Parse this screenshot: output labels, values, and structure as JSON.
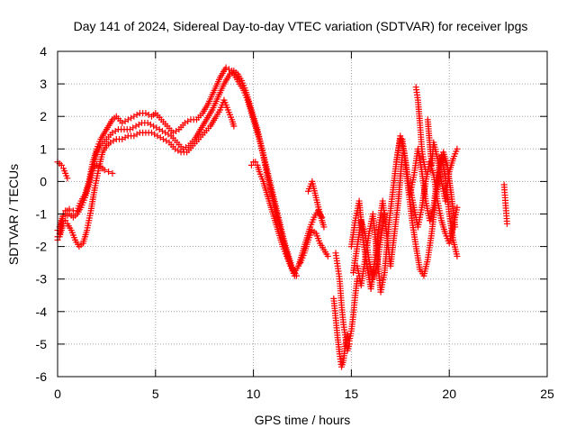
{
  "chart_data": {
    "type": "scatter",
    "title": "Day 141 of 2024, Sidereal Day-to-day VTEC variation (SDTVAR) for receiver lpgs",
    "xlabel": "GPS time / hours",
    "ylabel": "SDTVAR / TECUs",
    "xlim": [
      0,
      25
    ],
    "ylim": [
      -6,
      4
    ],
    "xticks": [
      0,
      5,
      10,
      15,
      20,
      25
    ],
    "yticks": [
      -6,
      -5,
      -4,
      -3,
      -2,
      -1,
      0,
      1,
      2,
      3,
      4
    ],
    "grid": true,
    "marker": "plus",
    "color": "#ff0000",
    "series": [
      {
        "x": [
          0.0,
          0.1,
          0.2,
          0.3,
          0.4,
          0.5,
          0.6,
          0.8,
          1.0,
          1.2,
          1.4,
          1.6,
          1.8,
          2.0,
          2.2,
          2.5,
          2.8,
          3.0,
          3.3,
          3.6,
          3.9,
          4.2,
          4.5,
          4.8,
          5.0,
          5.3,
          5.6,
          5.9,
          6.2,
          6.5,
          6.8,
          7.1,
          7.4,
          7.7,
          8.0,
          8.3,
          8.6,
          8.9,
          9.1,
          9.3,
          9.5,
          9.7,
          9.9,
          10.1,
          10.3,
          10.5,
          10.7,
          10.9,
          11.1,
          11.3,
          11.5,
          11.7,
          11.9,
          12.1
        ],
        "y": [
          -1.7,
          -1.6,
          -1.3,
          -1.0,
          -0.9,
          -0.9,
          -0.85,
          -0.9,
          -0.9,
          -0.6,
          -0.4,
          0.0,
          0.6,
          1.0,
          1.3,
          1.6,
          1.9,
          2.0,
          1.8,
          1.9,
          2.0,
          2.1,
          2.1,
          2.0,
          2.1,
          1.9,
          1.7,
          1.5,
          1.6,
          1.8,
          1.9,
          1.9,
          2.1,
          2.4,
          2.8,
          3.2,
          3.5,
          3.4,
          3.2,
          3.0,
          2.8,
          2.5,
          2.1,
          1.7,
          1.3,
          0.8,
          0.2,
          -0.3,
          -0.8,
          -1.3,
          -1.8,
          -2.2,
          -2.6,
          -2.9
        ]
      },
      {
        "x": [
          0.0,
          0.1,
          0.2,
          0.3,
          0.4,
          0.5,
          0.6,
          0.8,
          1.0,
          1.2,
          1.4,
          1.6,
          1.8,
          2.0,
          2.2,
          2.5,
          2.8,
          3.1,
          3.4,
          3.7,
          4.0,
          4.3,
          4.6,
          4.9,
          5.2,
          5.5,
          5.8,
          6.1,
          6.4,
          6.7,
          7.0,
          7.3,
          7.6,
          7.9,
          8.2,
          8.5,
          8.8,
          9.0,
          9.2,
          9.4,
          9.6,
          9.8,
          10.0,
          10.2,
          10.4,
          10.6,
          10.8,
          11.0,
          11.2,
          11.4,
          11.6,
          11.8,
          12.0,
          12.2
        ],
        "y": [
          -1.5,
          -1.4,
          -1.2,
          -1.0,
          -1.0,
          -1.05,
          -1.0,
          -1.1,
          -1.0,
          -0.8,
          -0.5,
          -0.1,
          0.4,
          0.9,
          1.1,
          1.3,
          1.5,
          1.6,
          1.6,
          1.6,
          1.7,
          1.8,
          1.8,
          1.7,
          1.6,
          1.5,
          1.4,
          1.2,
          1.0,
          1.1,
          1.3,
          1.6,
          1.9,
          2.2,
          2.6,
          3.0,
          3.3,
          3.4,
          3.3,
          3.1,
          2.8,
          2.4,
          2.0,
          1.6,
          1.1,
          0.6,
          0.1,
          -0.4,
          -0.9,
          -1.4,
          -1.9,
          -2.3,
          -2.7,
          -2.9
        ]
      },
      {
        "x": [
          0.0,
          0.1,
          0.2,
          0.3,
          0.4,
          0.5,
          0.7,
          0.9,
          1.1,
          1.3,
          1.5,
          1.7,
          1.9,
          2.1,
          2.3,
          2.5,
          2.7,
          3.0,
          3.3,
          3.6,
          3.9,
          4.2,
          4.5,
          4.8,
          5.1,
          5.4,
          5.7,
          6.0,
          6.3,
          6.6,
          6.9,
          7.2,
          7.5,
          7.8,
          8.1,
          8.3,
          8.5,
          8.7,
          8.9,
          9.0
        ],
        "y": [
          -1.8,
          -1.7,
          -1.5,
          -1.3,
          -1.2,
          -1.3,
          -1.5,
          -1.8,
          -2.0,
          -1.9,
          -1.5,
          -0.9,
          -0.2,
          0.4,
          0.9,
          1.1,
          1.2,
          1.3,
          1.3,
          1.4,
          1.4,
          1.5,
          1.5,
          1.5,
          1.4,
          1.3,
          1.2,
          1.0,
          0.9,
          0.9,
          1.1,
          1.3,
          1.5,
          1.7,
          2.0,
          2.2,
          2.5,
          2.2,
          1.9,
          1.7
        ]
      },
      {
        "x": [
          0.0,
          0.1,
          0.2,
          0.3,
          0.4,
          0.5
        ],
        "y": [
          0.6,
          0.55,
          0.5,
          0.4,
          0.25,
          0.1
        ]
      },
      {
        "x": [
          1.8,
          2.0,
          2.2,
          2.4,
          2.6,
          2.8
        ],
        "y": [
          0.4,
          0.5,
          0.45,
          0.35,
          0.3,
          0.25
        ]
      },
      {
        "x": [
          9.9,
          10.0,
          10.1,
          10.2,
          10.3,
          10.5,
          10.7,
          10.9,
          11.1,
          11.3,
          11.5,
          11.7,
          11.9,
          12.1,
          12.3,
          12.5,
          12.7,
          12.9,
          13.1,
          13.3,
          13.5
        ],
        "y": [
          0.5,
          0.6,
          0.6,
          0.5,
          0.3,
          0.0,
          -0.4,
          -0.8,
          -1.2,
          -1.6,
          -2.0,
          -2.3,
          -2.6,
          -2.8,
          -2.6,
          -2.2,
          -1.8,
          -1.4,
          -1.1,
          -0.9,
          -1.1
        ]
      },
      {
        "x": [
          12.4,
          12.6,
          12.8,
          13.0,
          13.2,
          13.4,
          13.6,
          13.8
        ],
        "y": [
          -2.5,
          -2.2,
          -1.8,
          -1.5,
          -1.6,
          -1.9,
          -2.1,
          -2.3
        ]
      },
      {
        "x": [
          12.8,
          13.0,
          13.2,
          13.4,
          13.6
        ],
        "y": [
          -0.3,
          0.0,
          -0.5,
          -1.0,
          -1.4
        ]
      },
      {
        "x": [
          14.1,
          14.2,
          14.3,
          14.4,
          14.5,
          14.6,
          14.7,
          14.8,
          14.9,
          15.0,
          15.1,
          15.2,
          15.3
        ],
        "y": [
          -3.6,
          -4.2,
          -4.8,
          -5.3,
          -5.7,
          -5.5,
          -5.0,
          -4.7,
          -4.9,
          -4.6,
          -4.1,
          -3.5,
          -3.0
        ]
      },
      {
        "x": [
          14.2,
          14.3,
          14.4,
          14.5,
          14.6,
          14.7,
          14.8,
          14.9
        ],
        "y": [
          -2.2,
          -2.6,
          -3.0,
          -3.8,
          -4.4,
          -4.8,
          -5.2,
          -5.0
        ]
      },
      {
        "x": [
          15.0,
          15.2,
          15.4,
          15.6,
          15.8,
          16.0,
          16.2,
          16.4,
          16.6,
          16.8,
          17.0,
          17.2,
          17.4,
          17.6
        ],
        "y": [
          -2.0,
          -1.2,
          -0.6,
          -1.8,
          -2.6,
          -3.3,
          -2.4,
          -1.4,
          -0.6,
          -1.6,
          -2.6,
          -1.6,
          -0.6,
          0.8
        ]
      },
      {
        "x": [
          15.3,
          15.5,
          15.7,
          15.9,
          16.1,
          16.3,
          16.5,
          16.7,
          16.9,
          17.1,
          17.3,
          17.5
        ],
        "y": [
          -2.6,
          -3.2,
          -2.4,
          -1.6,
          -1.0,
          -2.2,
          -3.4,
          -2.8,
          -1.4,
          -0.4,
          0.6,
          1.3
        ]
      },
      {
        "x": [
          15.1,
          15.3,
          15.5,
          15.7,
          15.9,
          16.1,
          16.3,
          16.5,
          16.7
        ],
        "y": [
          -2.8,
          -2.0,
          -1.2,
          -1.6,
          -2.4,
          -3.0,
          -2.6,
          -1.8,
          -1.0
        ]
      },
      {
        "x": [
          17.3,
          17.5,
          17.7,
          17.9,
          18.1,
          18.3,
          18.5,
          18.7,
          18.9,
          19.1,
          19.3,
          19.5,
          19.7,
          19.9,
          20.1,
          20.3
        ],
        "y": [
          0.6,
          1.4,
          0.8,
          -0.2,
          -1.2,
          -2.0,
          -2.7,
          -2.9,
          -2.4,
          -1.6,
          -0.6,
          0.3,
          0.9,
          0.5,
          -0.4,
          -1.4
        ]
      },
      {
        "x": [
          17.6,
          17.8,
          18.0,
          18.2,
          18.4,
          18.6,
          18.8,
          19.0,
          19.2,
          19.4,
          19.6,
          19.8,
          20.0,
          20.2,
          20.4
        ],
        "y": [
          1.3,
          0.5,
          -0.4,
          0.2,
          1.0,
          0.3,
          -0.6,
          -1.2,
          -0.8,
          0.2,
          0.8,
          0.1,
          -1.0,
          -1.8,
          -2.3
        ]
      },
      {
        "x": [
          18.0,
          18.2,
          18.4,
          18.6,
          18.8,
          19.0,
          19.2,
          19.4,
          19.6,
          19.8,
          20.0,
          20.2,
          20.4
        ],
        "y": [
          -0.2,
          -0.8,
          -1.4,
          -0.8,
          0.0,
          0.6,
          0.2,
          -0.6,
          -1.2,
          -1.6,
          -1.9,
          -1.4,
          -0.8
        ]
      },
      {
        "x": [
          18.3,
          18.4,
          18.5,
          18.6,
          18.7,
          18.8
        ],
        "y": [
          2.9,
          2.5,
          1.8,
          1.0,
          0.6,
          0.3
        ]
      },
      {
        "x": [
          18.9,
          19.0,
          19.1,
          19.2,
          19.4,
          19.6,
          19.8,
          20.0,
          20.2,
          20.4
        ],
        "y": [
          1.9,
          1.2,
          0.5,
          1.2,
          0.7,
          0.0,
          -0.6,
          0.3,
          0.7,
          1.0
        ]
      },
      {
        "x": [
          22.8,
          22.85,
          22.9,
          22.95
        ],
        "y": [
          -0.1,
          -0.5,
          -0.9,
          -1.3
        ]
      }
    ]
  }
}
